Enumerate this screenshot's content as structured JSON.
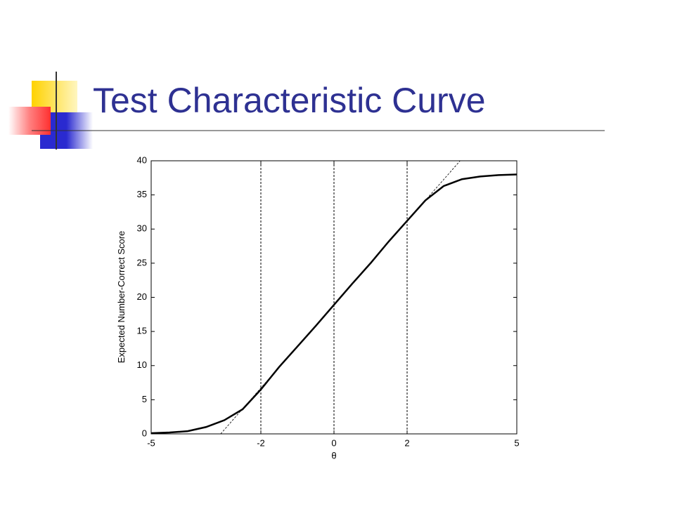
{
  "chart_data": {
    "type": "line",
    "title": "Test Characteristic Curve",
    "xlabel": "θ",
    "ylabel": "Expected Number-Correct Score",
    "xlim": [
      -5,
      5
    ],
    "xticks": [
      -5,
      -2,
      0,
      2,
      5
    ],
    "ylim": [
      0,
      40
    ],
    "yticks": [
      0,
      5,
      10,
      15,
      20,
      25,
      30,
      35,
      40
    ],
    "vlines": [
      -2,
      0,
      2
    ],
    "series": [
      {
        "color": "#000000",
        "style": "solid",
        "x": [
          -5,
          -4.5,
          -4,
          -3.5,
          -3,
          -2.5,
          -2,
          -1.5,
          -1,
          -0.5,
          0,
          0.5,
          1,
          1.5,
          2,
          2.5,
          3,
          3.5,
          4,
          4.5,
          5
        ],
        "values": [
          0.1,
          0.2,
          0.4,
          1.0,
          2.0,
          3.6,
          6.5,
          9.8,
          12.8,
          15.8,
          18.9,
          22.0,
          25.0,
          28.2,
          31.2,
          34.2,
          36.3,
          37.3,
          37.7,
          37.9,
          38.0
        ]
      },
      {
        "color": "#000000",
        "style": "dashed",
        "x": [
          -3.1,
          3.45
        ],
        "values": [
          0,
          40
        ]
      }
    ]
  }
}
